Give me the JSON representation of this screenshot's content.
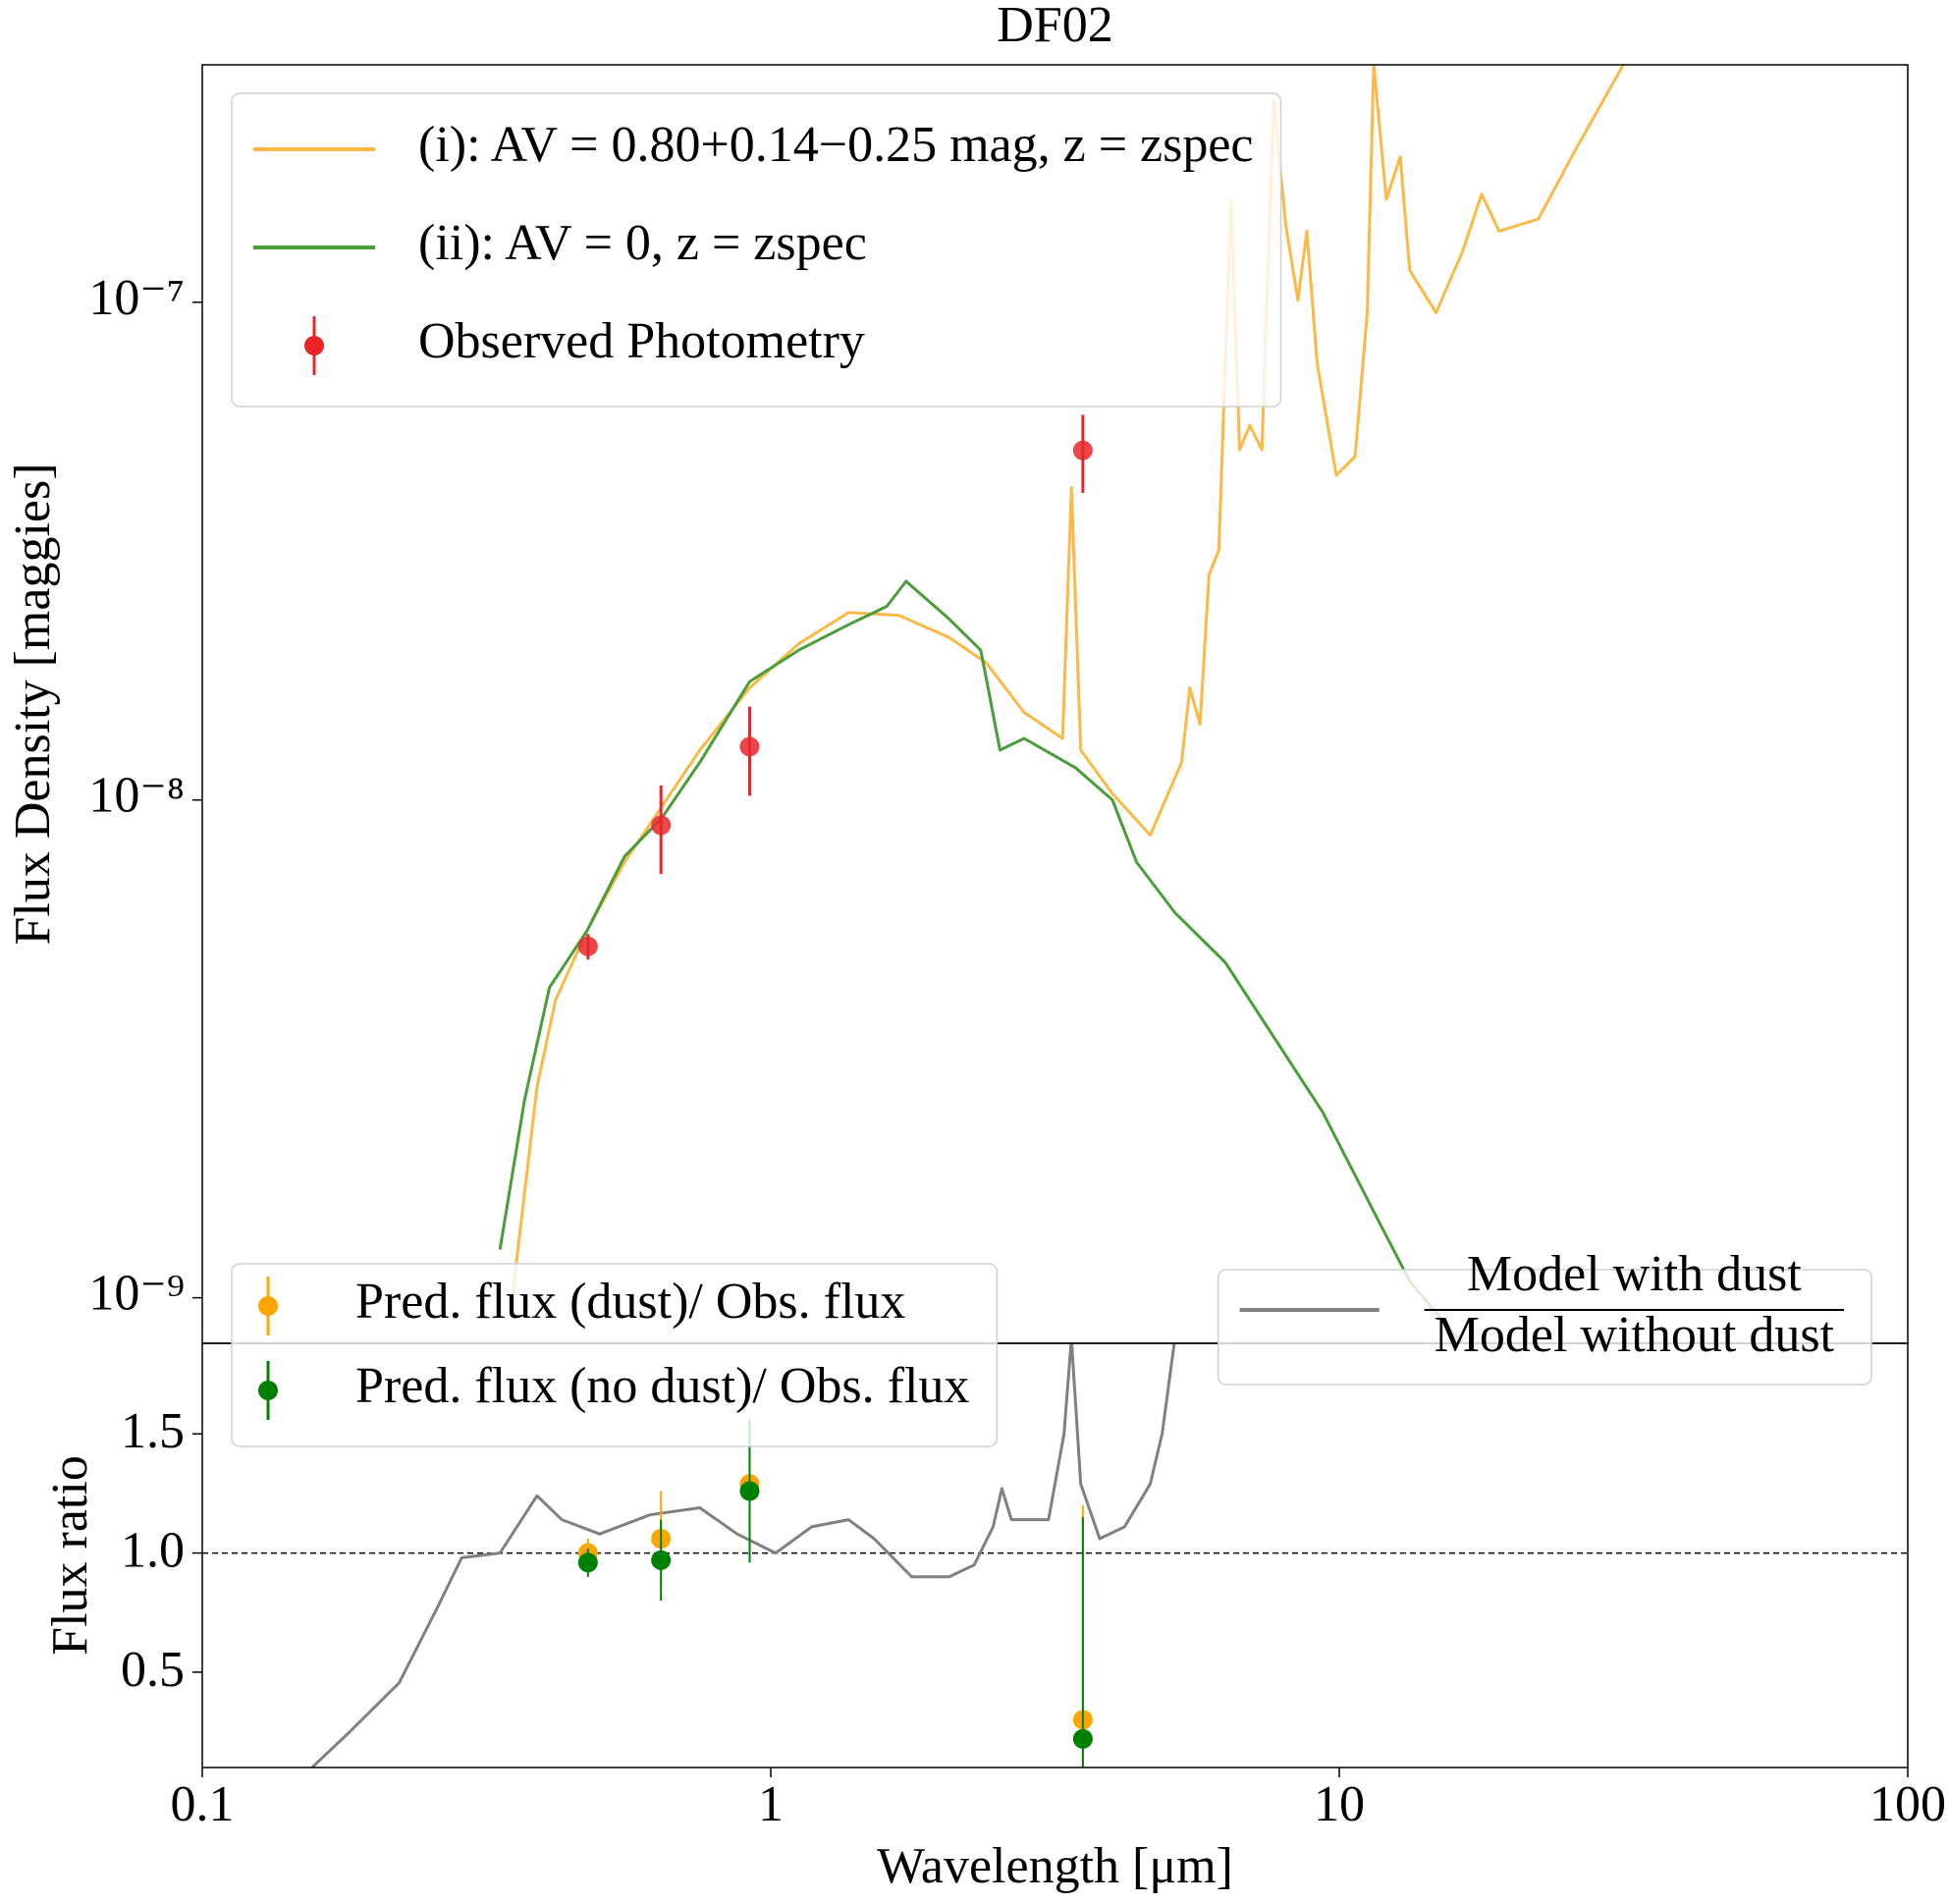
{
  "chart_data": [
    {
      "type": "line",
      "title": "DF02",
      "ylabel": "Flux Density [maggies]",
      "xscale": "log",
      "yscale": "log",
      "xlim": [
        0.1,
        100
      ],
      "ylim": [
        8.1e-10,
        3e-07
      ],
      "yticks": [
        {
          "value": 1e-09,
          "label": "10⁻⁹"
        },
        {
          "value": 1e-08,
          "label": "10⁻⁸"
        },
        {
          "value": 1e-07,
          "label": "10⁻⁷"
        }
      ],
      "legend": "upper left",
      "series": [
        {
          "name": "(i): AV = 0.80+0.14−0.25 mag, z = zspec",
          "type": "line",
          "color": "#fcb946",
          "x": [
            0.351,
            0.388,
            0.418,
            0.475,
            0.553,
            0.643,
            0.75,
            0.918,
            1.12,
            1.37,
            1.68,
            2.06,
            2.39,
            2.79,
            3.26,
            3.38,
            3.51,
            3.99,
            4.65,
            5.28,
            5.46,
            5.69,
            5.9,
            6.14,
            6.45,
            6.68,
            6.96,
            7.31,
            7.67,
            8.05,
            8.46,
            8.77,
            9.14,
            9.88,
            10.66,
            11.2,
            11.5,
            12.1,
            12.8,
            13.3,
            14.8,
            16.5,
            17.8,
            19.1,
            22.4,
            26.0,
            31.6
          ],
          "values": [
            1e-09,
            2.65e-09,
            3.96e-09,
            5.46e-09,
            7.5e-09,
            9.7e-09,
            1.26e-08,
            1.68e-08,
            2.06e-08,
            2.38e-08,
            2.35e-08,
            2.12e-08,
            1.89e-08,
            1.5e-08,
            1.33e-08,
            4.24e-08,
            1.26e-08,
            1.03e-08,
            8.5e-09,
            1.19e-08,
            1.68e-08,
            1.42e-08,
            2.83e-08,
            3.18e-08,
            1.6e-07,
            5.05e-08,
            5.66e-08,
            5.05e-08,
            2.54e-07,
            1.43e-07,
            1.01e-07,
            1.39e-07,
            7.55e-08,
            4.49e-08,
            4.9e-08,
            9.53e-08,
            3e-07,
            1.61e-07,
            1.96e-07,
            1.16e-07,
            9.53e-08,
            1.27e-07,
            1.65e-07,
            1.39e-07,
            1.47e-07,
            2.02e-07,
            3e-07
          ]
        },
        {
          "name": "(ii): AV = 0, z = zspec",
          "type": "line",
          "color": "#4a9e3a",
          "x": [
            0.334,
            0.369,
            0.408,
            0.475,
            0.553,
            0.643,
            0.75,
            0.918,
            1.12,
            1.37,
            1.6,
            1.73,
            2.06,
            2.34,
            2.4,
            2.53,
            2.79,
            3.44,
            3.99,
            4.4,
            5.14,
            6.3,
            7.67,
            9.35,
            11.5,
            13.3,
            16.5
          ],
          "values": [
            1.25e-09,
            2.5e-09,
            4.2e-09,
            5.46e-09,
            7.7e-09,
            9.2e-09,
            1.19e-08,
            1.73e-08,
            2e-08,
            2.25e-08,
            2.45e-08,
            2.75e-08,
            2.31e-08,
            2e-08,
            1.73e-08,
            1.26e-08,
            1.33e-08,
            1.16e-08,
            1e-08,
            7.5e-09,
            5.94e-09,
            4.72e-09,
            3.34e-09,
            2.36e-09,
            1.49e-09,
            1.08e-09,
            8.07e-10
          ]
        },
        {
          "name": "Observed Photometry",
          "type": "errorbar",
          "color": "#e8262a",
          "x": [
            0.477,
            0.641,
            0.918,
            3.54
          ],
          "values": [
            5.08e-09,
            8.9e-09,
            1.28e-08,
            5.04e-08
          ],
          "errors": [
            3e-10,
            1.8e-09,
            2.6e-09,
            9e-09
          ]
        }
      ]
    },
    {
      "type": "line",
      "xlabel": "Wavelength [μm]",
      "ylabel": "Flux ratio",
      "xscale": "log",
      "xlim": [
        0.1,
        100
      ],
      "ylim": [
        0.1,
        1.88
      ],
      "xticks": [
        0.1,
        1,
        10,
        100
      ],
      "yticks": [
        0.5,
        {
          "value": 1,
          "label": "1.0"
        },
        1.5
      ],
      "reference_line": 1,
      "legend": "upper left",
      "series": [
        {
          "name": {
            "numerator": "Model with dust",
            "denominator": "Model without dust"
          },
          "type": "line",
          "color": "#808080",
          "legend": "upper right",
          "x": [
            0.156,
            0.181,
            0.222,
            0.259,
            0.286,
            0.334,
            0.388,
            0.429,
            0.5,
            0.613,
            0.75,
            0.873,
            1.02,
            1.18,
            1.37,
            1.52,
            1.77,
            2.06,
            2.28,
            2.46,
            2.55,
            2.65,
            3.08,
            3.28,
            3.38,
            3.51,
            3.79,
            4.19,
            4.65,
            4.88,
            5.14
          ],
          "values": [
            0.1,
            0.246,
            0.455,
            0.77,
            0.98,
            1.0,
            1.24,
            1.14,
            1.08,
            1.16,
            1.19,
            1.08,
            1.0,
            1.11,
            1.14,
            1.06,
            0.9,
            0.9,
            0.95,
            1.11,
            1.27,
            1.14,
            1.14,
            1.5,
            1.9,
            1.29,
            1.06,
            1.11,
            1.29,
            1.5,
            1.9
          ]
        },
        {
          "name": "Pred. flux (dust)/ Obs. flux",
          "type": "errorbar",
          "color": "#ffa500",
          "x": [
            0.477,
            0.641,
            0.918,
            3.54
          ],
          "values": [
            1.0,
            1.06,
            1.29,
            0.3
          ],
          "errors": [
            0.06,
            0.2,
            0.26,
            0.9
          ]
        },
        {
          "name": "Pred. flux (no dust)/ Obs. flux",
          "type": "errorbar",
          "color": "#008000",
          "x": [
            0.477,
            0.641,
            0.918,
            3.54
          ],
          "values": [
            0.96,
            0.97,
            1.26,
            0.22
          ],
          "errors": [
            0.06,
            0.17,
            0.3,
            0.93
          ]
        }
      ]
    }
  ]
}
